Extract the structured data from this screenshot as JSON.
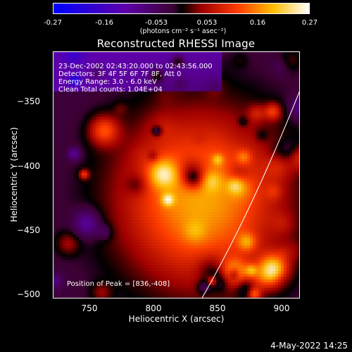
{
  "colorbar": {
    "ticks": [
      "-0.27",
      "-0.16",
      "-0.053",
      "0.053",
      "0.16",
      "0.27"
    ],
    "units_text": "(photons cm⁻² s⁻¹ asec⁻²)"
  },
  "title": "Reconstructed RHESSI Image",
  "annotations": {
    "line1": "23-Dec-2002 02:43:20.000 to 02:43:56.000",
    "line2": "Detectors: 3F 4F 5F 6F 7F 8F, Att 0",
    "line3": "Energy Range: 3.0 - 6.0 keV",
    "line4": "Clean     Total counts: 1.04E+04",
    "peak": "Position of Peak = [836,-408]"
  },
  "axes": {
    "x_title": "Heliocentric X (arcsec)",
    "y_title": "Heliocentric Y (arcsec)",
    "x_range": [
      721,
      913
    ],
    "y_range": [
      -505,
      -313
    ],
    "x_ticks": [
      {
        "v": 750,
        "label": "750"
      },
      {
        "v": 800,
        "label": "800"
      },
      {
        "v": 850,
        "label": "850"
      },
      {
        "v": 900,
        "label": "900"
      }
    ],
    "y_ticks": [
      {
        "v": -350,
        "label": "−350"
      },
      {
        "v": -400,
        "label": "−400"
      },
      {
        "v": -450,
        "label": "−450"
      },
      {
        "v": -500,
        "label": "−500"
      }
    ]
  },
  "footer": {
    "date": "4-May-2022 14:25"
  },
  "colors": {
    "background": "#000000",
    "text": "#ffffff"
  }
}
